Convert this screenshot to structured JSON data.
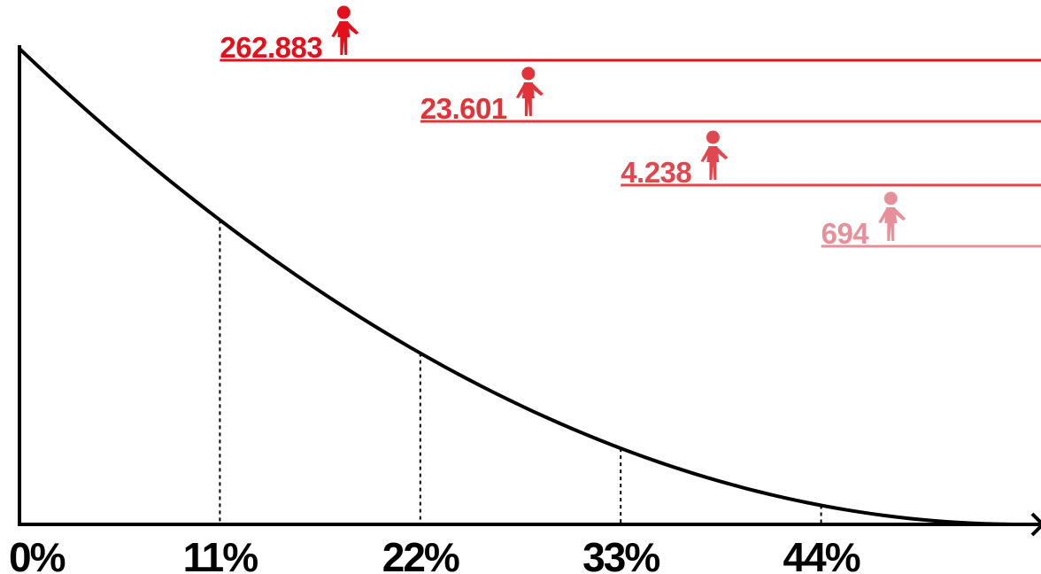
{
  "chart_data": {
    "type": "line",
    "title": "",
    "xlabel": "",
    "ylabel": "",
    "x_tick_labels": [
      "0%",
      "11%",
      "22%",
      "33%",
      "44%"
    ],
    "x_tick_values": [
      0,
      11,
      22,
      33,
      44
    ],
    "xlim": [
      0,
      55
    ],
    "curve_shape": "decreasing convex curve, highest at 0% and reaching the x-axis at the right end",
    "grid": false,
    "legend": "none",
    "markers": [
      {
        "label": "262.883",
        "start_x": 11,
        "color": "#e3101a",
        "icon": "person-icon"
      },
      {
        "label": "23.601",
        "start_x": 22,
        "color": "#e23339",
        "icon": "person-icon"
      },
      {
        "label": "4.238",
        "start_x": 33,
        "color": "#e1474f",
        "icon": "person-icon"
      },
      {
        "label": "694",
        "start_x": 44,
        "color": "#e8909a",
        "icon": "person-icon"
      }
    ]
  }
}
